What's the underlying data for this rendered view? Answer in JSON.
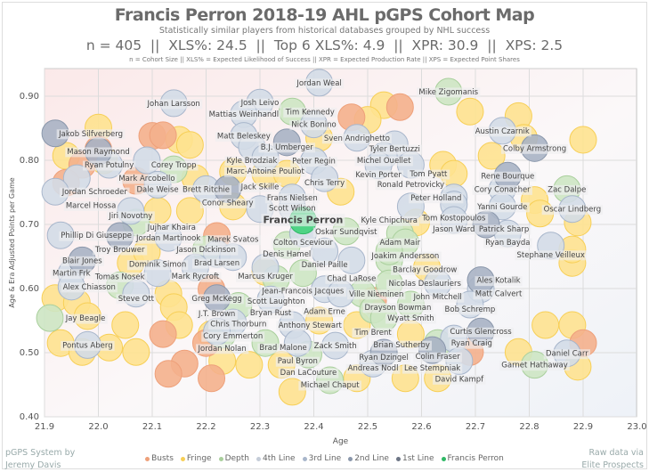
{
  "header": {
    "title": "Francis Perron 2018-19 AHL pGPS Cohort Map",
    "subtitle": "Statistically similar players from historical databases grouped by NHL success",
    "stats": "n = 405  ||  XLS%: 24.5  ||  Top 6 XLS%: 4.9  ||  XPR: 30.9  ||  XPS: 2.5",
    "definitions": "n = Cohort Size || XLS% = Expected Likelihood of Success || XPR = Expected Production Rate || XPS = Expected Point Shares"
  },
  "footer": {
    "left_line1": "pGPS System by",
    "left_line2": "Jeremy Davis",
    "right_line1": "Raw data via",
    "right_line2": "Elite Prospects"
  },
  "chart_data": {
    "type": "scatter",
    "title": "Francis Perron 2018-19 AHL pGPS Cohort Map",
    "xlabel": "Age",
    "ylabel": "Age & Era Adjusted Points per Game",
    "xlim": [
      21.9,
      23.0
    ],
    "ylim": [
      0.4,
      0.943
    ],
    "xticks": [
      "21.9",
      "22.0",
      "22.1",
      "22.2",
      "22.3",
      "22.4",
      "22.5",
      "22.6",
      "22.7",
      "22.8",
      "22.9",
      "23.0"
    ],
    "yticks": [
      "0.40",
      "0.50",
      "0.60",
      "0.70",
      "0.80",
      "0.90"
    ],
    "grid": true,
    "legend_placement": "bottom",
    "categories": [
      {
        "name": "Busts",
        "color": "#f4b08c",
        "stroke": "#eea07a"
      },
      {
        "name": "Fringe",
        "color": "#fee28f",
        "stroke": "#f7cf56"
      },
      {
        "name": "Depth",
        "color": "#cde6c3",
        "stroke": "#a9cf9c"
      },
      {
        "name": "4th Line",
        "color": "#e2e7ee",
        "stroke": "#c4ccd8"
      },
      {
        "name": "3rd Line",
        "color": "#d3dbe7",
        "stroke": "#a8b6cb"
      },
      {
        "name": "2nd Line",
        "color": "#a8b3c4",
        "stroke": "#8a97ab"
      },
      {
        "name": "1st Line",
        "color": "#838b9b",
        "stroke": "#6d7585"
      },
      {
        "name": "Francis Perron",
        "color": "#3fd27a",
        "stroke": "#2fb865"
      }
    ],
    "unlabeled_points": {
      "Fringe": [
        [
          22.0,
          0.851
        ],
        [
          22.15,
          0.832
        ],
        [
          22.17,
          0.824
        ],
        [
          22.01,
          0.8
        ],
        [
          21.94,
          0.807
        ],
        [
          22.18,
          0.772
        ],
        [
          22.25,
          0.782
        ],
        [
          22.25,
          0.728
        ],
        [
          22.17,
          0.721
        ],
        [
          22.11,
          0.721
        ],
        [
          22.31,
          0.779
        ],
        [
          22.35,
          0.779
        ],
        [
          22.45,
          0.751
        ],
        [
          22.41,
          0.835
        ],
        [
          22.53,
          0.886
        ],
        [
          22.5,
          0.863
        ],
        [
          22.69,
          0.876
        ],
        [
          22.78,
          0.869
        ],
        [
          22.79,
          0.835
        ],
        [
          22.9,
          0.832
        ],
        [
          22.73,
          0.807
        ],
        [
          22.64,
          0.793
        ],
        [
          22.66,
          0.779
        ],
        [
          22.81,
          0.738
        ],
        [
          22.82,
          0.717
        ],
        [
          22.89,
          0.703
        ],
        [
          22.88,
          0.64
        ],
        [
          22.88,
          0.661
        ],
        [
          22.83,
          0.543
        ],
        [
          22.88,
          0.543
        ],
        [
          22.89,
          0.478
        ],
        [
          22.78,
          0.501
        ],
        [
          22.57,
          0.46
        ],
        [
          22.63,
          0.46
        ],
        [
          22.31,
          0.626
        ],
        [
          21.92,
          0.585
        ],
        [
          21.96,
          0.578
        ],
        [
          21.98,
          0.557
        ],
        [
          21.93,
          0.515
        ],
        [
          21.97,
          0.501
        ],
        [
          22.02,
          0.508
        ],
        [
          22.07,
          0.501
        ],
        [
          22.05,
          0.543
        ],
        [
          22.06,
          0.64
        ],
        [
          22.09,
          0.657
        ],
        [
          22.13,
          0.592
        ],
        [
          22.14,
          0.571
        ],
        [
          22.15,
          0.543
        ],
        [
          22.21,
          0.529
        ],
        [
          22.23,
          0.487
        ],
        [
          22.28,
          0.481
        ],
        [
          22.34,
          0.481
        ],
        [
          22.36,
          0.439
        ],
        [
          22.48,
          0.46
        ],
        [
          22.41,
          0.55
        ],
        [
          22.48,
          0.543
        ],
        [
          22.59,
          0.703
        ],
        [
          22.61,
          0.633
        ],
        [
          22.58,
          0.529
        ]
      ],
      "Busts": [
        [
          22.1,
          0.838
        ],
        [
          22.12,
          0.839
        ],
        [
          22.0,
          0.817
        ],
        [
          21.97,
          0.793
        ],
        [
          22.07,
          0.768
        ],
        [
          21.94,
          0.765
        ],
        [
          22.56,
          0.883
        ],
        [
          22.47,
          0.867
        ],
        [
          22.22,
          0.682
        ],
        [
          22.2,
          0.515
        ],
        [
          22.16,
          0.483
        ],
        [
          22.13,
          0.467
        ],
        [
          22.21,
          0.46
        ],
        [
          22.12,
          0.529
        ],
        [
          22.69,
          0.501
        ],
        [
          22.9,
          0.515
        ],
        [
          22.51,
          0.581
        ],
        [
          22.21,
          0.599
        ]
      ]
    },
    "players": [
      {
        "name": "Jordan Weal",
        "age": 22.41,
        "value": 0.921,
        "tier": "3rd Line"
      },
      {
        "name": "Johan Larsson",
        "age": 22.14,
        "value": 0.889,
        "tier": "3rd Line"
      },
      {
        "name": "Josh Leivo",
        "age": 22.3,
        "value": 0.89,
        "tier": "3rd Line"
      },
      {
        "name": "Mattias Weinhandl",
        "age": 22.27,
        "value": 0.872,
        "tier": "3rd Line"
      },
      {
        "name": "Tim Kennedy",
        "age": 22.36,
        "value": 0.876,
        "tier": "Depth"
      },
      {
        "name": "Nick Bonino",
        "age": 22.4,
        "value": 0.856,
        "tier": "3rd Line"
      },
      {
        "name": "Jakob Silfverberg",
        "age": 21.92,
        "value": 0.842,
        "tier": "2nd Line"
      },
      {
        "name": "Matt Beleskey",
        "age": 22.27,
        "value": 0.838,
        "tier": "3rd Line"
      },
      {
        "name": "B.J. Umberger",
        "age": 22.35,
        "value": 0.828,
        "tier": "2nd Line"
      },
      {
        "name": "Sven Andrighetto",
        "age": 22.48,
        "value": 0.835,
        "tier": "3rd Line"
      },
      {
        "name": "Mike Zigomanis",
        "age": 22.65,
        "value": 0.907,
        "tier": "Depth"
      },
      {
        "name": "Austin Czarnik",
        "age": 22.75,
        "value": 0.846,
        "tier": "3rd Line"
      },
      {
        "name": "Colby Armstrong",
        "age": 22.81,
        "value": 0.819,
        "tier": "2nd Line"
      },
      {
        "name": "Mason Raymond",
        "age": 22.0,
        "value": 0.814,
        "tier": "2nd Line"
      },
      {
        "name": "Ryan Potulny",
        "age": 22.02,
        "value": 0.793,
        "tier": "3rd Line"
      },
      {
        "name": "Kyle Brodziak",
        "age": 22.285,
        "value": 0.821,
        "tier": "3rd Line"
      },
      {
        "name": "Marc-Antoine Pouliot",
        "age": 22.31,
        "value": 0.804,
        "tier": "3rd Line"
      },
      {
        "name": "Tyler Bertuzzi",
        "age": 22.55,
        "value": 0.825,
        "tier": "3rd Line"
      },
      {
        "name": "Mark Arcobello",
        "age": 22.09,
        "value": 0.8,
        "tier": "3rd Line"
      },
      {
        "name": "Corey Tropp",
        "age": 22.14,
        "value": 0.786,
        "tier": "Depth"
      },
      {
        "name": "Peter Regin",
        "age": 22.4,
        "value": 0.799,
        "tier": "3rd Line"
      },
      {
        "name": "Michel Ouellet",
        "age": 22.53,
        "value": 0.807,
        "tier": "3rd Line"
      },
      {
        "name": "Kevin Porter",
        "age": 22.52,
        "value": 0.792,
        "tier": "3rd Line"
      },
      {
        "name": "Tom Pyatt",
        "age": 22.58,
        "value": 0.793,
        "tier": "3rd Line"
      },
      {
        "name": "Jordan Schroeder",
        "age": 21.96,
        "value": 0.772,
        "tier": "3rd Line"
      },
      {
        "name": "Marcel Hossa",
        "age": 21.92,
        "value": 0.751,
        "tier": "3rd Line"
      },
      {
        "name": "Dale Weise",
        "age": 22.11,
        "value": 0.762,
        "tier": "3rd Line"
      },
      {
        "name": "Rene Bourque",
        "age": 22.76,
        "value": 0.776,
        "tier": "2nd Line"
      },
      {
        "name": "Cory Conacher",
        "age": 22.75,
        "value": 0.755,
        "tier": "3rd Line"
      },
      {
        "name": "Zac Dalpe",
        "age": 22.87,
        "value": 0.755,
        "tier": "Depth"
      },
      {
        "name": "Brett Ritchie",
        "age": 22.2,
        "value": 0.755,
        "tier": "3rd Line"
      },
      {
        "name": "Conor Sheary",
        "age": 22.24,
        "value": 0.755,
        "tier": "2nd Line"
      },
      {
        "name": "Chris Terry",
        "age": 22.42,
        "value": 0.772,
        "tier": "3rd Line"
      },
      {
        "name": "Frans Nielsen",
        "age": 22.36,
        "value": 0.742,
        "tier": "3rd Line"
      },
      {
        "name": "Scott Wilson",
        "age": 22.36,
        "value": 0.726,
        "tier": "3rd Line"
      },
      {
        "name": "Jack Skille",
        "age": 22.3,
        "value": 0.724,
        "tier": "3rd Line"
      },
      {
        "name": "Yanni Gourde",
        "age": 22.75,
        "value": 0.728,
        "tier": "3rd Line"
      },
      {
        "name": "Oscar Lindberg",
        "age": 22.88,
        "value": 0.724,
        "tier": "3rd Line"
      },
      {
        "name": "Peter Holland",
        "age": 22.66,
        "value": 0.742,
        "tier": "3rd Line"
      },
      {
        "name": "Tom Kostopoulos",
        "age": 22.66,
        "value": 0.731,
        "tier": "3rd Line"
      },
      {
        "name": "Ronald Petrovicky",
        "age": 22.58,
        "value": 0.728,
        "tier": "3rd Line"
      },
      {
        "name": "Jason Ward",
        "age": 22.66,
        "value": 0.707,
        "tier": "3rd Line"
      },
      {
        "name": "Patrick Sharp",
        "age": 22.72,
        "value": 0.7,
        "tier": "2nd Line"
      },
      {
        "name": "Ryan Bayda",
        "age": 22.76,
        "value": 0.686,
        "tier": "3rd Line"
      },
      {
        "name": "Stephane Veilleux",
        "age": 22.84,
        "value": 0.667,
        "tier": "3rd Line"
      },
      {
        "name": "Oskar Sundqvist",
        "age": 22.46,
        "value": 0.689,
        "tier": "Depth"
      },
      {
        "name": "Colton Sceviour",
        "age": 22.38,
        "value": 0.686,
        "tier": "3rd Line"
      },
      {
        "name": "Adam Mair",
        "age": 22.56,
        "value": 0.686,
        "tier": "Depth"
      },
      {
        "name": "Joakim Andersson",
        "age": 22.57,
        "value": 0.672,
        "tier": "Depth"
      },
      {
        "name": "Denis Hamel",
        "age": 22.35,
        "value": 0.668,
        "tier": "Depth"
      },
      {
        "name": "Daniel Paille",
        "age": 22.42,
        "value": 0.658,
        "tier": "3rd Line"
      },
      {
        "name": "Chad LaRose",
        "age": 22.47,
        "value": 0.644,
        "tier": "3rd Line"
      },
      {
        "name": "Barclay Goodrow",
        "age": 22.54,
        "value": 0.644,
        "tier": "Depth"
      },
      {
        "name": "Kyle Chipchura",
        "age": 22.54,
        "value": 0.658,
        "tier": "Depth"
      },
      {
        "name": "Phillip Di Giuseppe",
        "age": 21.93,
        "value": 0.683,
        "tier": "3rd Line"
      },
      {
        "name": "Jiri Novotny",
        "age": 22.06,
        "value": 0.721,
        "tier": "3rd Line"
      },
      {
        "name": "Jujhar Khaira",
        "age": 22.07,
        "value": 0.703,
        "tier": "Depth"
      },
      {
        "name": "Troy Brouwer",
        "age": 22.04,
        "value": 0.682,
        "tier": "2nd Line"
      },
      {
        "name": "Jordan Martinook",
        "age": 22.13,
        "value": 0.679,
        "tier": "3rd Line"
      },
      {
        "name": "Jason Dickinson",
        "age": 22.2,
        "value": 0.661,
        "tier": "Depth"
      },
      {
        "name": "Brad Larsen",
        "age": 22.22,
        "value": 0.654,
        "tier": "3rd Line"
      },
      {
        "name": "Marek Svatos",
        "age": 22.25,
        "value": 0.649,
        "tier": "3rd Line"
      },
      {
        "name": "Blair Jones",
        "age": 21.97,
        "value": 0.644,
        "tier": "2nd Line"
      },
      {
        "name": "Martin Frk",
        "age": 21.95,
        "value": 0.624,
        "tier": "3rd Line"
      },
      {
        "name": "Alex Chiasson",
        "age": 21.95,
        "value": 0.603,
        "tier": "3rd Line"
      },
      {
        "name": "Tomas Nosek",
        "age": 22.04,
        "value": 0.605,
        "tier": "Depth"
      },
      {
        "name": "Dominik Simon",
        "age": 22.11,
        "value": 0.624,
        "tier": "3rd Line"
      },
      {
        "name": "Steve Ott",
        "age": 22.07,
        "value": 0.592,
        "tier": "3rd Line"
      },
      {
        "name": "Mark Rycroft",
        "age": 22.18,
        "value": 0.633,
        "tier": "3rd Line"
      },
      {
        "name": "Marcus Kruger",
        "age": 22.31,
        "value": 0.633,
        "tier": "3rd Line"
      },
      {
        "name": "Jean-Francois Jacques",
        "age": 22.38,
        "value": 0.624,
        "tier": "Depth"
      },
      {
        "name": "Scott Laughton",
        "age": 22.33,
        "value": 0.615,
        "tier": "Depth"
      },
      {
        "name": "Adam Erne",
        "age": 22.42,
        "value": 0.599,
        "tier": "3rd Line"
      },
      {
        "name": "Ville Nieminen",
        "age": 22.45,
        "value": 0.592,
        "tier": "3rd Line"
      },
      {
        "name": "Greg McKegg",
        "age": 22.22,
        "value": 0.585,
        "tier": "2nd Line"
      },
      {
        "name": "Bryan Rust",
        "age": 22.32,
        "value": 0.583,
        "tier": "3rd Line"
      },
      {
        "name": "Chris Thorburn",
        "age": 22.26,
        "value": 0.573,
        "tier": "Depth"
      },
      {
        "name": "Cory Emmerton",
        "age": 22.25,
        "value": 0.547,
        "tier": "3rd Line"
      },
      {
        "name": "Anthony Stewart",
        "age": 22.36,
        "value": 0.543,
        "tier": "3rd Line"
      },
      {
        "name": "J.T. Brown",
        "age": 22.22,
        "value": 0.533,
        "tier": "3rd Line"
      },
      {
        "name": "Jordan Nolan",
        "age": 22.23,
        "value": 0.528,
        "tier": "Depth"
      },
      {
        "name": "Brad Malone",
        "age": 22.31,
        "value": 0.515,
        "tier": "Depth"
      },
      {
        "name": "Paul Byron",
        "age": 22.37,
        "value": 0.515,
        "tier": "3rd Line"
      },
      {
        "name": "Zack Smith",
        "age": 22.44,
        "value": 0.511,
        "tier": "3rd Line"
      },
      {
        "name": "Dan LaCouture",
        "age": 22.39,
        "value": 0.497,
        "tier": "Depth"
      },
      {
        "name": "Michael Chaput",
        "age": 22.43,
        "value": 0.457,
        "tier": "Depth"
      },
      {
        "name": "Nicolas Deslauriers",
        "age": 22.54,
        "value": 0.608,
        "tier": "Depth"
      },
      {
        "name": "John Mitchell",
        "age": 22.63,
        "value": 0.608,
        "tier": "3rd Line"
      },
      {
        "name": "Ales Kotalik",
        "age": 22.71,
        "value": 0.613,
        "tier": "2nd Line"
      },
      {
        "name": "Matt Calvert",
        "age": 22.71,
        "value": 0.599,
        "tier": "3rd Line"
      },
      {
        "name": "Drayson Bowman",
        "age": 22.49,
        "value": 0.592,
        "tier": "Depth"
      },
      {
        "name": "Wyatt Smith",
        "age": 22.58,
        "value": 0.575,
        "tier": "Depth"
      },
      {
        "name": "Bob Schremp",
        "age": 22.69,
        "value": 0.575,
        "tier": "3rd Line"
      },
      {
        "name": "Tim Brent",
        "age": 22.51,
        "value": 0.567,
        "tier": "Depth"
      },
      {
        "name": "Brian Sutherby",
        "age": 22.53,
        "value": 0.554,
        "tier": "Depth"
      },
      {
        "name": "Curtis Glencross",
        "age": 22.71,
        "value": 0.533,
        "tier": "2nd Line"
      },
      {
        "name": "Ryan Craig",
        "age": 22.66,
        "value": 0.522,
        "tier": "3rd Line"
      },
      {
        "name": "Colin Fraser",
        "age": 22.63,
        "value": 0.515,
        "tier": "Depth"
      },
      {
        "name": "Lee Stempniak",
        "age": 22.62,
        "value": 0.504,
        "tier": "2nd Line"
      },
      {
        "name": "Ryan Dzingel",
        "age": 22.53,
        "value": 0.5,
        "tier": "2nd Line"
      },
      {
        "name": "Andreas Nodl",
        "age": 22.51,
        "value": 0.483,
        "tier": "3rd Line"
      },
      {
        "name": "David Kampf",
        "age": 22.67,
        "value": 0.487,
        "tier": "3rd Line"
      },
      {
        "name": "Garnet Hathaway",
        "age": 22.81,
        "value": 0.481,
        "tier": "Depth"
      },
      {
        "name": "Daniel Carr",
        "age": 22.87,
        "value": 0.499,
        "tier": "3rd Line"
      },
      {
        "name": "Jay Beagle",
        "age": 21.91,
        "value": 0.554,
        "tier": "Depth"
      },
      {
        "name": "Pontus Aberg",
        "age": 21.98,
        "value": 0.512,
        "tier": "3rd Line"
      },
      {
        "name": "Francis Perron",
        "age": 22.38,
        "value": 0.706,
        "tier": "Francis Perron"
      }
    ]
  }
}
